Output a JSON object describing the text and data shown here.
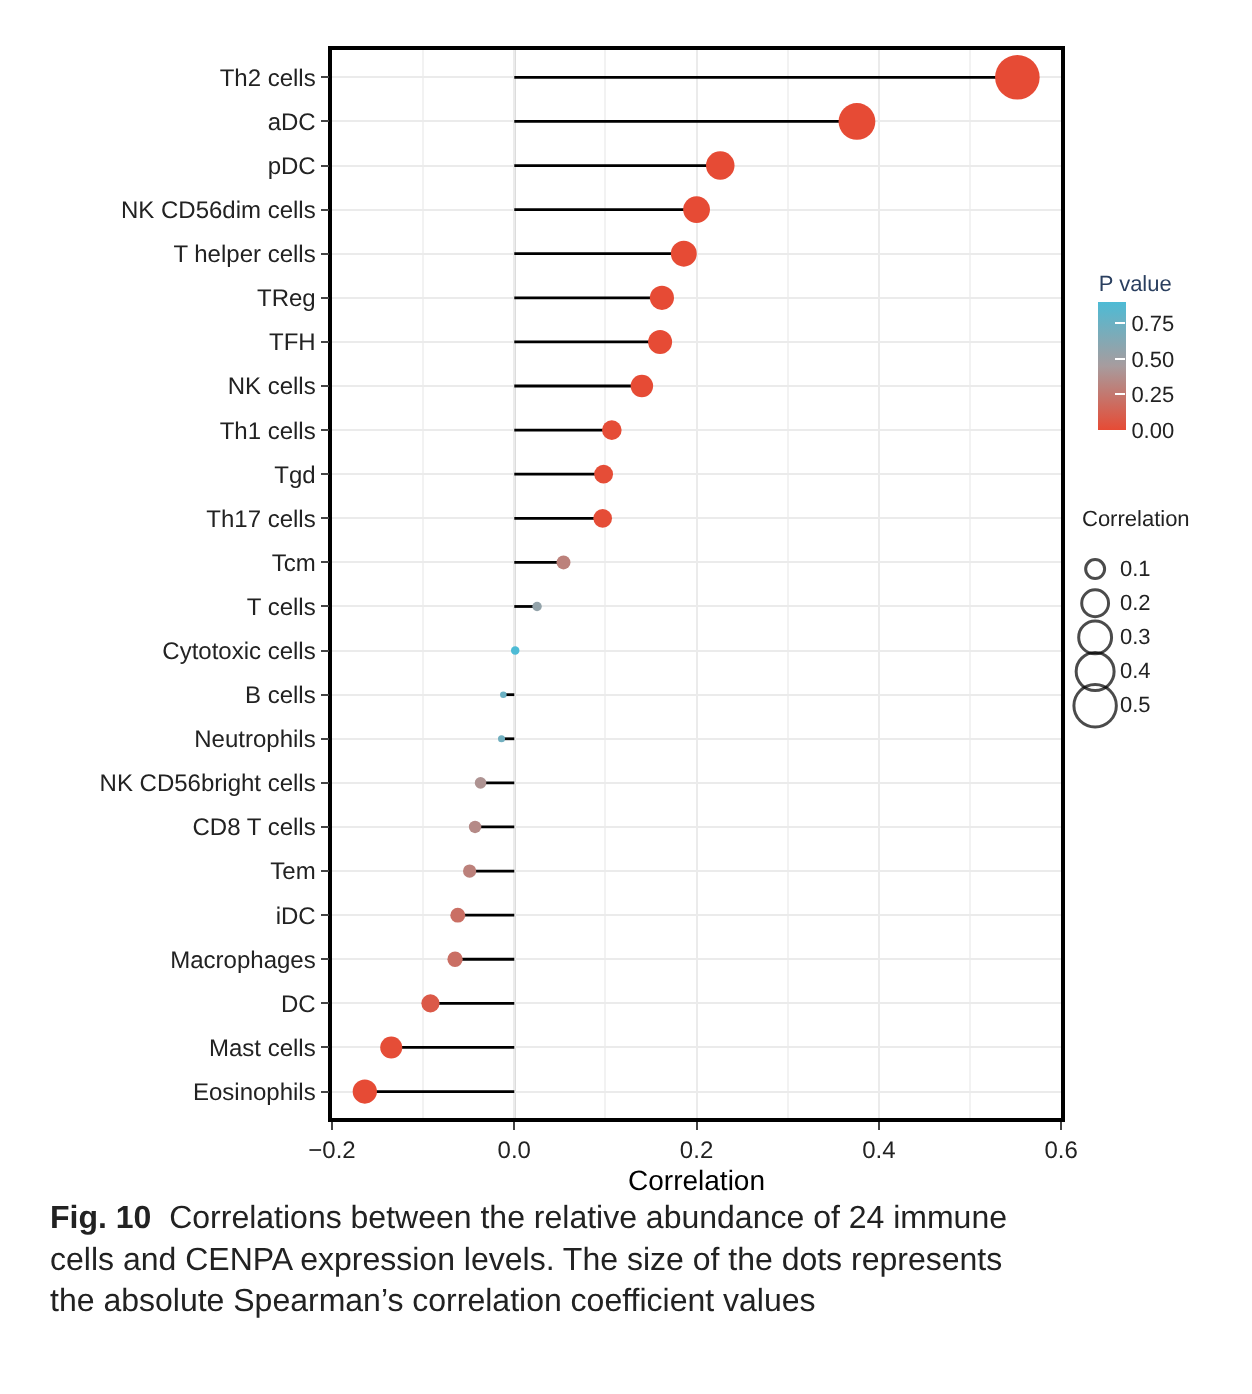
{
  "chart_data": {
    "type": "lollipop",
    "orientation": "horizontal",
    "categories": [
      "Th2 cells",
      "aDC",
      "pDC",
      "NK CD56dim cells",
      "T helper cells",
      "TReg",
      "TFH",
      "NK cells",
      "Th1 cells",
      "Tgd",
      "Th17 cells",
      "Tcm",
      "T cells",
      "Cytotoxic cells",
      "B cells",
      "Neutrophils",
      "NK CD56bright cells",
      "CD8 T cells",
      "Tem",
      "iDC",
      "Macrophages",
      "DC",
      "Mast cells",
      "Eosinophils"
    ],
    "values": [
      0.552,
      0.376,
      0.226,
      0.2,
      0.186,
      0.162,
      0.16,
      0.14,
      0.107,
      0.098,
      0.097,
      0.054,
      0.025,
      0.001,
      -0.012,
      -0.014,
      -0.037,
      -0.043,
      -0.049,
      -0.062,
      -0.065,
      -0.092,
      -0.135,
      -0.164
    ],
    "cvalues": [
      0.0,
      0.0,
      0.0,
      0.0,
      0.0,
      0.0,
      0.0,
      0.0,
      0.01,
      0.01,
      0.01,
      0.3,
      0.55,
      0.9,
      0.75,
      0.72,
      0.4,
      0.35,
      0.3,
      0.2,
      0.2,
      0.08,
      0.01,
      0.0
    ],
    "sizes": [
      0.552,
      0.376,
      0.226,
      0.2,
      0.186,
      0.162,
      0.16,
      0.14,
      0.107,
      0.098,
      0.097,
      0.054,
      0.025,
      0.02,
      0.012,
      0.014,
      0.037,
      0.043,
      0.049,
      0.062,
      0.065,
      0.092,
      0.135,
      0.164
    ],
    "size_legend": [
      0.1,
      0.2,
      0.3,
      0.4,
      0.5
    ],
    "xlabel": "Correlation",
    "clabel": "P value",
    "legend_title": "Correlation",
    "clim": [
      0,
      0.9
    ],
    "cticks": [
      {
        "value": 0,
        "label": "0.00"
      },
      {
        "value": 0.25,
        "label": "0.25"
      },
      {
        "value": 0.5,
        "label": "0.50"
      },
      {
        "value": 0.75,
        "label": "0.75"
      }
    ],
    "xlim": [
      -0.2,
      0.6
    ],
    "xticks": [
      {
        "value": -0.2,
        "label": "−0.2"
      },
      {
        "value": 0,
        "label": "0.0"
      },
      {
        "value": 0.2,
        "label": "0.2"
      },
      {
        "value": 0.4,
        "label": "0.4"
      },
      {
        "value": 0.6,
        "label": "0.6"
      }
    ],
    "ref_lines": [
      {
        "axis": "x",
        "value": 0,
        "color": "#808080"
      }
    ],
    "grid": true,
    "annotations": [
      "Fig. 10",
      "Correlations between the relative abundance of 24 immune cells and CENPA expression levels. The size of the dots represents the absolute Spearman’s correlation coefficient values"
    ]
  }
}
